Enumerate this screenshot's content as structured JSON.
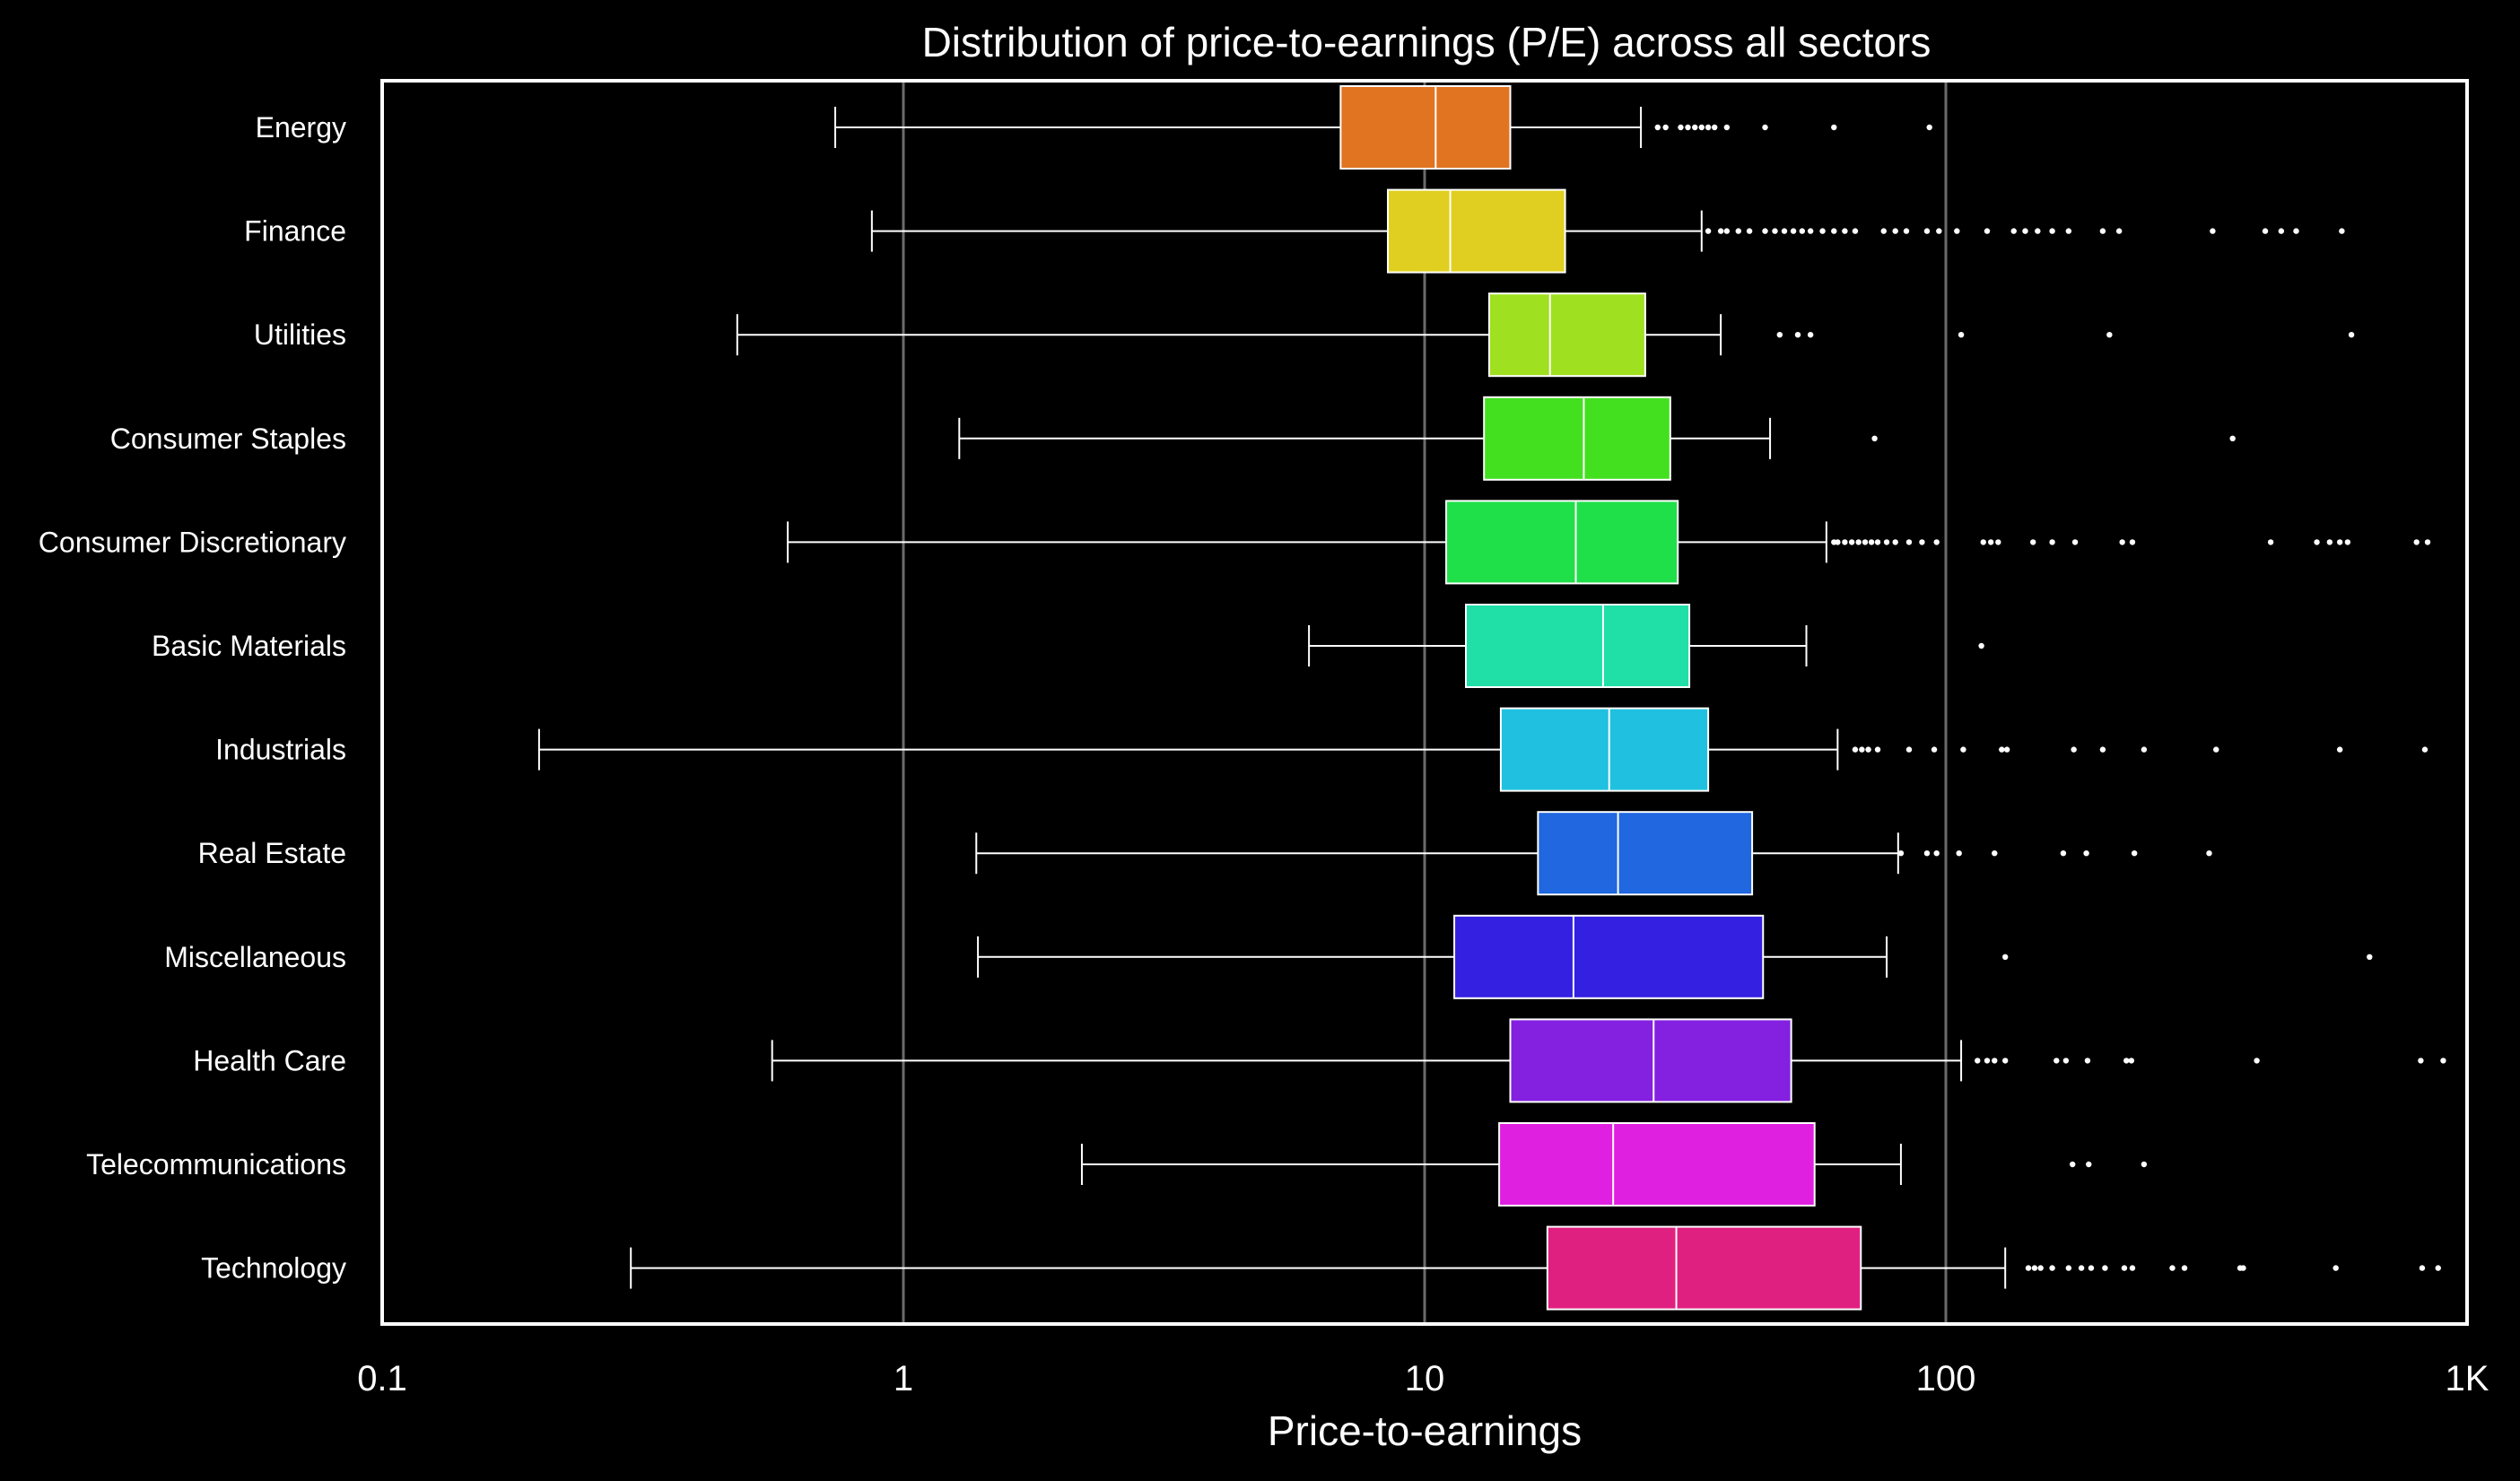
{
  "chart_data": {
    "type": "box",
    "title": "Distribution of price-to-earnings (P/E) across all sectors",
    "xlabel": "Price-to-earnings",
    "ylabel": "",
    "x_scale": "log",
    "xlim": [
      0.1,
      1000
    ],
    "x_ticks": [
      {
        "value": 0.1,
        "label": "0.1"
      },
      {
        "value": 1,
        "label": "1"
      },
      {
        "value": 10,
        "label": "10"
      },
      {
        "value": 100,
        "label": "100"
      },
      {
        "value": 1000,
        "label": "1K"
      }
    ],
    "grid": "vertical",
    "colors": {
      "background": "#000000",
      "axes": "#ffffff",
      "grid": "#6b6b6b"
    },
    "categories": [
      {
        "name": "Energy",
        "color": "#e07420",
        "whisker_low": 0.74,
        "q1": 6.9,
        "median": 10.5,
        "q3": 14.6,
        "whisker_high": 26,
        "outliers": [
          28,
          29,
          31,
          32,
          33,
          34,
          35,
          36,
          38,
          45,
          61,
          93
        ]
      },
      {
        "name": "Finance",
        "color": "#e0cf20",
        "whisker_low": 0.87,
        "q1": 8.5,
        "median": 11.2,
        "q3": 18.6,
        "whisker_high": 34,
        "outliers": [
          35,
          37,
          38,
          40,
          42,
          45,
          47,
          49,
          51,
          53,
          55,
          58,
          61,
          64,
          67,
          76,
          80,
          84,
          92,
          97,
          105,
          120,
          135,
          142,
          150,
          160,
          172,
          200,
          215,
          325,
          410,
          440,
          470,
          575
        ]
      },
      {
        "name": "Utilities",
        "color": "#9fe020",
        "whisker_low": 0.48,
        "q1": 13.3,
        "median": 17.4,
        "q3": 26.5,
        "whisker_high": 37,
        "outliers": [
          48,
          52,
          55,
          107,
          206,
          600
        ]
      },
      {
        "name": "Consumer Staples",
        "color": "#43e020",
        "whisker_low": 1.28,
        "q1": 13.0,
        "median": 20.2,
        "q3": 29.6,
        "whisker_high": 46,
        "outliers": [
          73,
          355
        ]
      },
      {
        "name": "Consumer Discretionary",
        "color": "#20e04a",
        "whisker_low": 0.6,
        "q1": 11.0,
        "median": 19.5,
        "q3": 30.6,
        "whisker_high": 59,
        "outliers": [
          61,
          62,
          64,
          66,
          68,
          70,
          72,
          74,
          77,
          80,
          85,
          90,
          96,
          118,
          122,
          126,
          147,
          160,
          177,
          218,
          228,
          420,
          515,
          545,
          570,
          590,
          800,
          840
        ]
      },
      {
        "name": "Basic Materials",
        "color": "#20e0a8",
        "whisker_low": 6.0,
        "q1": 12.0,
        "median": 22.0,
        "q3": 32.2,
        "whisker_high": 54,
        "outliers": [
          117
        ]
      },
      {
        "name": "Industrials",
        "color": "#20c0e0",
        "whisker_low": 0.2,
        "q1": 14.0,
        "median": 22.6,
        "q3": 35.0,
        "whisker_high": 62,
        "outliers": [
          67,
          69,
          71,
          74,
          85,
          95,
          108,
          128,
          131,
          176,
          200,
          240,
          330,
          570,
          830
        ]
      },
      {
        "name": "Real Estate",
        "color": "#2067e0",
        "whisker_low": 1.38,
        "q1": 16.5,
        "median": 23.5,
        "q3": 42.5,
        "whisker_high": 81,
        "outliers": [
          82,
          92,
          96,
          106,
          124,
          168,
          186,
          230,
          320
        ]
      },
      {
        "name": "Miscellaneous",
        "color": "#3320e0",
        "whisker_low": 1.39,
        "q1": 11.4,
        "median": 19.3,
        "q3": 44.6,
        "whisker_high": 77,
        "outliers": [
          130,
          650
        ]
      },
      {
        "name": "Health Care",
        "color": "#8420e0",
        "whisker_low": 0.56,
        "q1": 14.6,
        "median": 27.5,
        "q3": 50.5,
        "whisker_high": 107,
        "outliers": [
          115,
          120,
          124,
          130,
          163,
          170,
          187,
          222,
          227,
          395,
          815,
          900
        ]
      },
      {
        "name": "Telecommunications",
        "color": "#e020e0",
        "whisker_low": 2.2,
        "q1": 13.9,
        "median": 23.0,
        "q3": 56.0,
        "whisker_high": 82,
        "outliers": [
          175,
          188,
          240
        ]
      },
      {
        "name": "Technology",
        "color": "#e02080",
        "whisker_low": 0.3,
        "q1": 17.2,
        "median": 30.4,
        "q3": 68.7,
        "whisker_high": 130,
        "outliers": [
          144,
          148,
          152,
          160,
          172,
          182,
          190,
          202,
          220,
          228,
          272,
          287,
          367,
          372,
          560,
          820,
          880
        ]
      }
    ]
  }
}
